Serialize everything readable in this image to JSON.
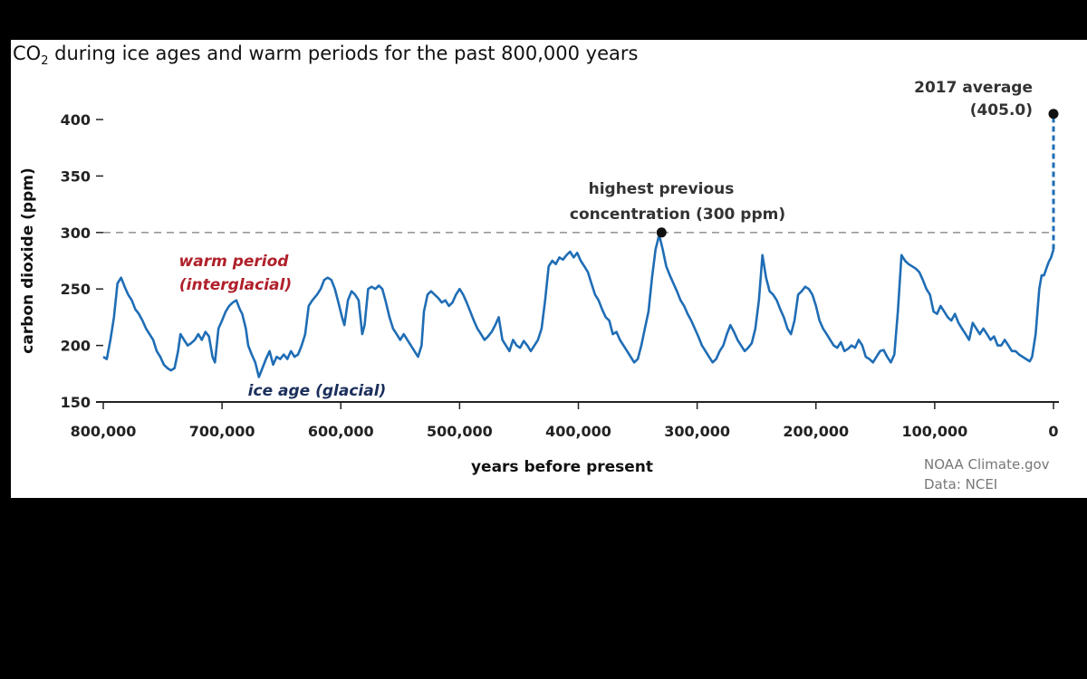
{
  "chart_data": {
    "type": "line",
    "title_main": "CO",
    "title_sub": "2",
    "title_rest": " during ice ages and warm periods for the past 800,000 years",
    "xlabel": "years before present",
    "ylabel": "carbon dioxide (ppm)",
    "xlim": [
      800000,
      0
    ],
    "ylim": [
      150,
      420
    ],
    "x_ticks": [
      800000,
      700000,
      600000,
      500000,
      400000,
      300000,
      200000,
      100000,
      0
    ],
    "x_tick_labels": [
      "800,000",
      "700,000",
      "600,000",
      "500,000",
      "400,000",
      "300,000",
      "200,000",
      "100,000",
      "0"
    ],
    "y_ticks": [
      150,
      200,
      250,
      300,
      350,
      400
    ],
    "y_tick_labels": [
      "150",
      "200",
      "250",
      "300",
      "350",
      "400"
    ],
    "line_color": "#1f6db5",
    "reference_line": {
      "y": 300,
      "color": "#999999"
    },
    "annotations": {
      "record_line1": "2017 average",
      "record_line2": "(405.0)",
      "previous_line1": "highest previous",
      "previous_line2": "concentration (300 ppm)",
      "warm_line1": "warm period",
      "warm_line2": "(interglacial)",
      "ice": "ice age (glacial)"
    },
    "record_point": {
      "x": 0,
      "y": 405
    },
    "previous_point": {
      "x": 330000,
      "y": 300
    },
    "series": [
      {
        "points": [
          [
            800000,
            190
          ],
          [
            797000,
            188
          ],
          [
            794000,
            205
          ],
          [
            791000,
            225
          ],
          [
            788000,
            255
          ],
          [
            785000,
            260
          ],
          [
            782000,
            252
          ],
          [
            779000,
            245
          ],
          [
            776000,
            240
          ],
          [
            773000,
            232
          ],
          [
            770000,
            228
          ],
          [
            767000,
            222
          ],
          [
            764000,
            215
          ],
          [
            761000,
            210
          ],
          [
            758000,
            205
          ],
          [
            755000,
            195
          ],
          [
            752000,
            190
          ],
          [
            749000,
            183
          ],
          [
            746000,
            180
          ],
          [
            743000,
            178
          ],
          [
            740000,
            180
          ],
          [
            737000,
            195
          ],
          [
            735000,
            210
          ],
          [
            732000,
            205
          ],
          [
            729000,
            200
          ],
          [
            726000,
            202
          ],
          [
            723000,
            205
          ],
          [
            720000,
            210
          ],
          [
            717000,
            205
          ],
          [
            714000,
            212
          ],
          [
            711000,
            208
          ],
          [
            708000,
            190
          ],
          [
            706000,
            185
          ],
          [
            703000,
            215
          ],
          [
            700000,
            222
          ],
          [
            697000,
            230
          ],
          [
            694000,
            235
          ],
          [
            691000,
            238
          ],
          [
            688000,
            240
          ],
          [
            685000,
            232
          ],
          [
            683000,
            228
          ],
          [
            680000,
            215
          ],
          [
            678000,
            200
          ],
          [
            675000,
            192
          ],
          [
            672000,
            185
          ],
          [
            669000,
            172
          ],
          [
            666000,
            180
          ],
          [
            663000,
            188
          ],
          [
            660000,
            195
          ],
          [
            657000,
            183
          ],
          [
            654000,
            190
          ],
          [
            651000,
            188
          ],
          [
            648000,
            192
          ],
          [
            645000,
            188
          ],
          [
            642000,
            195
          ],
          [
            639000,
            190
          ],
          [
            636000,
            192
          ],
          [
            633000,
            200
          ],
          [
            630000,
            210
          ],
          [
            627000,
            235
          ],
          [
            624000,
            240
          ],
          [
            620000,
            245
          ],
          [
            617000,
            250
          ],
          [
            614000,
            258
          ],
          [
            611000,
            260
          ],
          [
            608000,
            258
          ],
          [
            605000,
            250
          ],
          [
            602000,
            238
          ],
          [
            599000,
            225
          ],
          [
            597000,
            218
          ],
          [
            594000,
            240
          ],
          [
            591000,
            248
          ],
          [
            588000,
            245
          ],
          [
            585000,
            240
          ],
          [
            582000,
            210
          ],
          [
            580000,
            218
          ],
          [
            577000,
            250
          ],
          [
            574000,
            252
          ],
          [
            571000,
            250
          ],
          [
            568000,
            253
          ],
          [
            565000,
            250
          ],
          [
            562000,
            238
          ],
          [
            559000,
            225
          ],
          [
            556000,
            215
          ],
          [
            553000,
            210
          ],
          [
            550000,
            205
          ],
          [
            547000,
            210
          ],
          [
            544000,
            205
          ],
          [
            541000,
            200
          ],
          [
            538000,
            195
          ],
          [
            535000,
            190
          ],
          [
            532000,
            200
          ],
          [
            530000,
            230
          ],
          [
            527000,
            245
          ],
          [
            524000,
            248
          ],
          [
            521000,
            245
          ],
          [
            518000,
            242
          ],
          [
            515000,
            238
          ],
          [
            512000,
            240
          ],
          [
            509000,
            235
          ],
          [
            506000,
            238
          ],
          [
            503000,
            245
          ],
          [
            500000,
            250
          ],
          [
            497000,
            245
          ],
          [
            494000,
            238
          ],
          [
            491000,
            230
          ],
          [
            488000,
            222
          ],
          [
            485000,
            215
          ],
          [
            482000,
            210
          ],
          [
            479000,
            205
          ],
          [
            476000,
            208
          ],
          [
            473000,
            212
          ],
          [
            470000,
            218
          ],
          [
            467000,
            225
          ],
          [
            464000,
            205
          ],
          [
            461000,
            200
          ],
          [
            458000,
            195
          ],
          [
            455000,
            205
          ],
          [
            452000,
            200
          ],
          [
            449000,
            198
          ],
          [
            446000,
            204
          ],
          [
            443000,
            200
          ],
          [
            440000,
            195
          ],
          [
            437000,
            200
          ],
          [
            434000,
            205
          ],
          [
            431000,
            215
          ],
          [
            428000,
            240
          ],
          [
            425000,
            270
          ],
          [
            422000,
            275
          ],
          [
            419000,
            272
          ],
          [
            416000,
            278
          ],
          [
            413000,
            276
          ],
          [
            410000,
            280
          ],
          [
            407000,
            283
          ],
          [
            404000,
            278
          ],
          [
            401000,
            282
          ],
          [
            398000,
            275
          ],
          [
            395000,
            270
          ],
          [
            392000,
            265
          ],
          [
            389000,
            255
          ],
          [
            386000,
            245
          ],
          [
            383000,
            240
          ],
          [
            380000,
            232
          ],
          [
            377000,
            225
          ],
          [
            374000,
            222
          ],
          [
            371000,
            210
          ],
          [
            368000,
            212
          ],
          [
            365000,
            205
          ],
          [
            362000,
            200
          ],
          [
            359000,
            195
          ],
          [
            356000,
            190
          ],
          [
            353000,
            185
          ],
          [
            350000,
            188
          ],
          [
            347000,
            200
          ],
          [
            344000,
            215
          ],
          [
            341000,
            230
          ],
          [
            338000,
            260
          ],
          [
            335000,
            285
          ],
          [
            332000,
            298
          ],
          [
            329000,
            285
          ],
          [
            326000,
            270
          ],
          [
            323000,
            262
          ],
          [
            320000,
            255
          ],
          [
            317000,
            248
          ],
          [
            314000,
            240
          ],
          [
            311000,
            235
          ],
          [
            308000,
            228
          ],
          [
            305000,
            222
          ],
          [
            302000,
            215
          ],
          [
            299000,
            208
          ],
          [
            296000,
            200
          ],
          [
            293000,
            195
          ],
          [
            290000,
            190
          ],
          [
            287000,
            185
          ],
          [
            284000,
            188
          ],
          [
            281000,
            195
          ],
          [
            278000,
            200
          ],
          [
            275000,
            210
          ],
          [
            272000,
            218
          ],
          [
            269000,
            212
          ],
          [
            266000,
            205
          ],
          [
            263000,
            200
          ],
          [
            260000,
            195
          ],
          [
            257000,
            198
          ],
          [
            254000,
            202
          ],
          [
            251000,
            215
          ],
          [
            248000,
            240
          ],
          [
            245000,
            280
          ],
          [
            242000,
            260
          ],
          [
            239000,
            248
          ],
          [
            236000,
            245
          ],
          [
            233000,
            240
          ],
          [
            230000,
            232
          ],
          [
            227000,
            225
          ],
          [
            224000,
            215
          ],
          [
            221000,
            210
          ],
          [
            218000,
            222
          ],
          [
            215000,
            245
          ],
          [
            212000,
            248
          ],
          [
            209000,
            252
          ],
          [
            206000,
            250
          ],
          [
            203000,
            245
          ],
          [
            200000,
            235
          ],
          [
            197000,
            222
          ],
          [
            194000,
            215
          ],
          [
            191000,
            210
          ],
          [
            188000,
            205
          ],
          [
            185000,
            200
          ],
          [
            182000,
            198
          ],
          [
            179000,
            203
          ],
          [
            176000,
            195
          ],
          [
            173000,
            197
          ],
          [
            170000,
            200
          ],
          [
            167000,
            198
          ],
          [
            164000,
            205
          ],
          [
            161000,
            200
          ],
          [
            158000,
            190
          ],
          [
            155000,
            188
          ],
          [
            152000,
            185
          ],
          [
            149000,
            190
          ],
          [
            146000,
            195
          ],
          [
            143000,
            196
          ],
          [
            140000,
            190
          ],
          [
            137000,
            185
          ],
          [
            134000,
            192
          ],
          [
            131000,
            230
          ],
          [
            128000,
            280
          ],
          [
            125000,
            275
          ],
          [
            122000,
            272
          ],
          [
            119000,
            270
          ],
          [
            116000,
            268
          ],
          [
            113000,
            265
          ],
          [
            110000,
            258
          ],
          [
            107000,
            250
          ],
          [
            104000,
            245
          ],
          [
            101000,
            230
          ],
          [
            98000,
            228
          ],
          [
            95000,
            235
          ],
          [
            92000,
            230
          ],
          [
            89000,
            225
          ],
          [
            86000,
            222
          ],
          [
            83000,
            228
          ],
          [
            80000,
            220
          ],
          [
            77000,
            215
          ],
          [
            74000,
            210
          ],
          [
            71000,
            205
          ],
          [
            68000,
            220
          ],
          [
            65000,
            215
          ],
          [
            62000,
            210
          ],
          [
            59000,
            215
          ],
          [
            56000,
            210
          ],
          [
            53000,
            205
          ],
          [
            50000,
            208
          ],
          [
            47000,
            200
          ],
          [
            44000,
            200
          ],
          [
            41000,
            205
          ],
          [
            38000,
            200
          ],
          [
            35000,
            195
          ],
          [
            32000,
            195
          ],
          [
            29000,
            192
          ],
          [
            26000,
            190
          ],
          [
            23000,
            188
          ],
          [
            20000,
            186
          ],
          [
            18000,
            190
          ],
          [
            15000,
            210
          ],
          [
            12000,
            250
          ],
          [
            10000,
            262
          ],
          [
            8000,
            262
          ],
          [
            6000,
            268
          ],
          [
            4000,
            274
          ],
          [
            2000,
            278
          ],
          [
            0,
            285
          ]
        ]
      }
    ]
  },
  "source": {
    "line1": "NOAA Climate.gov",
    "line2": "Data: NCEI"
  }
}
